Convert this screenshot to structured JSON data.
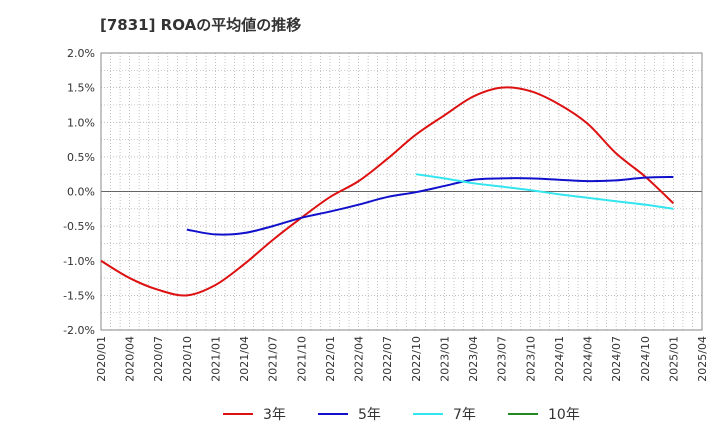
{
  "chart_data": {
    "type": "line",
    "title": "[7831]  ROAの平均値の推移",
    "x": [
      "2020/01",
      "2020/04",
      "2020/07",
      "2020/10",
      "2021/01",
      "2021/04",
      "2021/07",
      "2021/10",
      "2022/01",
      "2022/04",
      "2022/07",
      "2022/10",
      "2023/01",
      "2023/04",
      "2023/07",
      "2023/10",
      "2024/01",
      "2024/04",
      "2024/07",
      "2024/10",
      "2025/01",
      "2025/04"
    ],
    "ylim": [
      -2.0,
      2.0
    ],
    "yticks": [
      "2.0%",
      "1.5%",
      "1.0%",
      "0.5%",
      "0.0%",
      "-0.5%",
      "-1.0%",
      "-1.5%",
      "-2.0%"
    ],
    "grid": true,
    "legend_position": "bottom",
    "series": [
      {
        "name": "3年",
        "color": "#dd1111",
        "values": [
          -1.0,
          -1.25,
          -1.42,
          -1.5,
          -1.35,
          -1.05,
          -0.7,
          -0.38,
          -0.08,
          0.15,
          0.47,
          0.82,
          1.1,
          1.37,
          1.5,
          1.45,
          1.26,
          0.98,
          0.55,
          0.22,
          -0.17,
          null
        ]
      },
      {
        "name": "5年",
        "color": "#1111cc",
        "values": [
          null,
          null,
          null,
          -0.55,
          -0.62,
          -0.6,
          -0.5,
          -0.38,
          -0.29,
          -0.19,
          -0.08,
          -0.01,
          0.08,
          0.17,
          0.19,
          0.19,
          0.17,
          0.15,
          0.16,
          0.2,
          0.21,
          null
        ]
      },
      {
        "name": "7年",
        "color": "#33e5ee",
        "values": [
          null,
          null,
          null,
          null,
          null,
          null,
          null,
          null,
          null,
          null,
          null,
          0.25,
          0.19,
          0.12,
          0.07,
          0.02,
          -0.04,
          -0.09,
          -0.14,
          -0.19,
          -0.25,
          null
        ]
      },
      {
        "name": "10年",
        "color": "#228822",
        "values": [
          null,
          null,
          null,
          null,
          null,
          null,
          null,
          null,
          null,
          null,
          null,
          null,
          null,
          null,
          null,
          null,
          null,
          null,
          null,
          null,
          null,
          null
        ]
      }
    ]
  }
}
